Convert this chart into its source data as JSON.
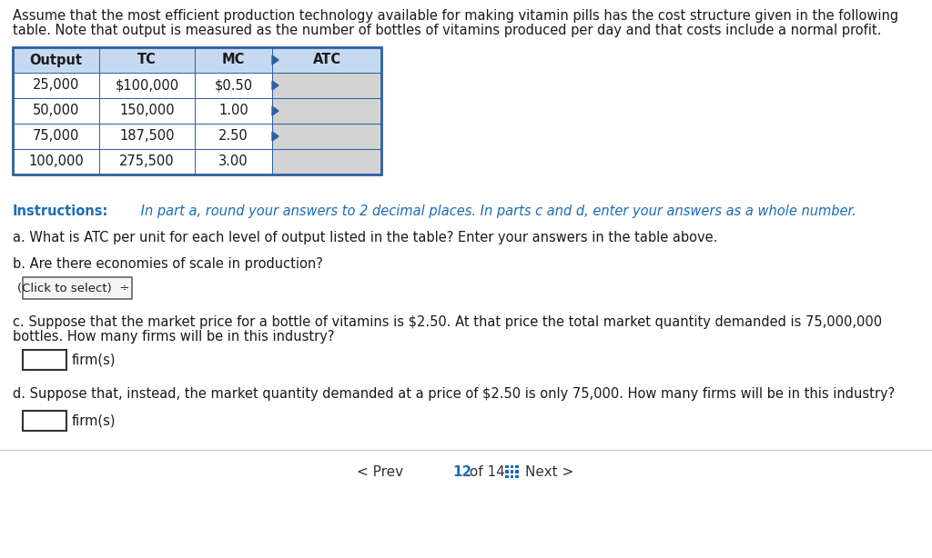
{
  "header_text_line1": "Assume that the most efficient production technology available for making vitamin pills has the cost structure given in the following",
  "header_text_line2": "table. Note that output is measured as the number of bottles of vitamins produced per day and that costs include a normal profit.",
  "table_headers": [
    "Output",
    "TC",
    "MC",
    "ATC"
  ],
  "table_rows": [
    [
      "25,000",
      "$100,000",
      "$0.50",
      ""
    ],
    [
      "50,000",
      "150,000",
      "1.00",
      ""
    ],
    [
      "75,000",
      "187,500",
      "2.50",
      ""
    ],
    [
      "100,000",
      "275,500",
      "3.00",
      ""
    ]
  ],
  "instructions_bold": "Instructions:",
  "instructions_rest": " In part a, round your answers to 2 decimal places. In parts c and d, enter your answers as a whole number.",
  "question_a": "a. What is ATC per unit for each level of output listed in the table? Enter your answers in the table above.",
  "question_b": "b. Are there economies of scale in production?",
  "dropdown_text": "(Click to select)  ÷",
  "question_c": "c. Suppose that the market price for a bottle of vitamins is $2.50. At that price the total market quantity demanded is 75,000,000",
  "question_c2": "bottles. How many firms will be in this industry?",
  "firm_label_c": "firm(s)",
  "question_d": "d. Suppose that, instead, the market quantity demanded at a price of $2.50 is only 75,000. How many firms will be in this industry?",
  "firm_label_d": "firm(s)",
  "prev_text": "< Prev",
  "nav_num": "12",
  "nav_of": " of 14",
  "next_text": "Next >",
  "bg_color": "#ffffff",
  "table_header_bg": "#c5d9f1",
  "table_cell_bg": "#ffffff",
  "table_atc_bg": "#d3d3d3",
  "table_border_color": "#2c5f9e",
  "instructions_color": "#1a6db5",
  "text_color": "#1a1a1a",
  "nav_color": "#333333",
  "nav_num_color": "#1a6db5",
  "grid_color": "#1a6db5"
}
